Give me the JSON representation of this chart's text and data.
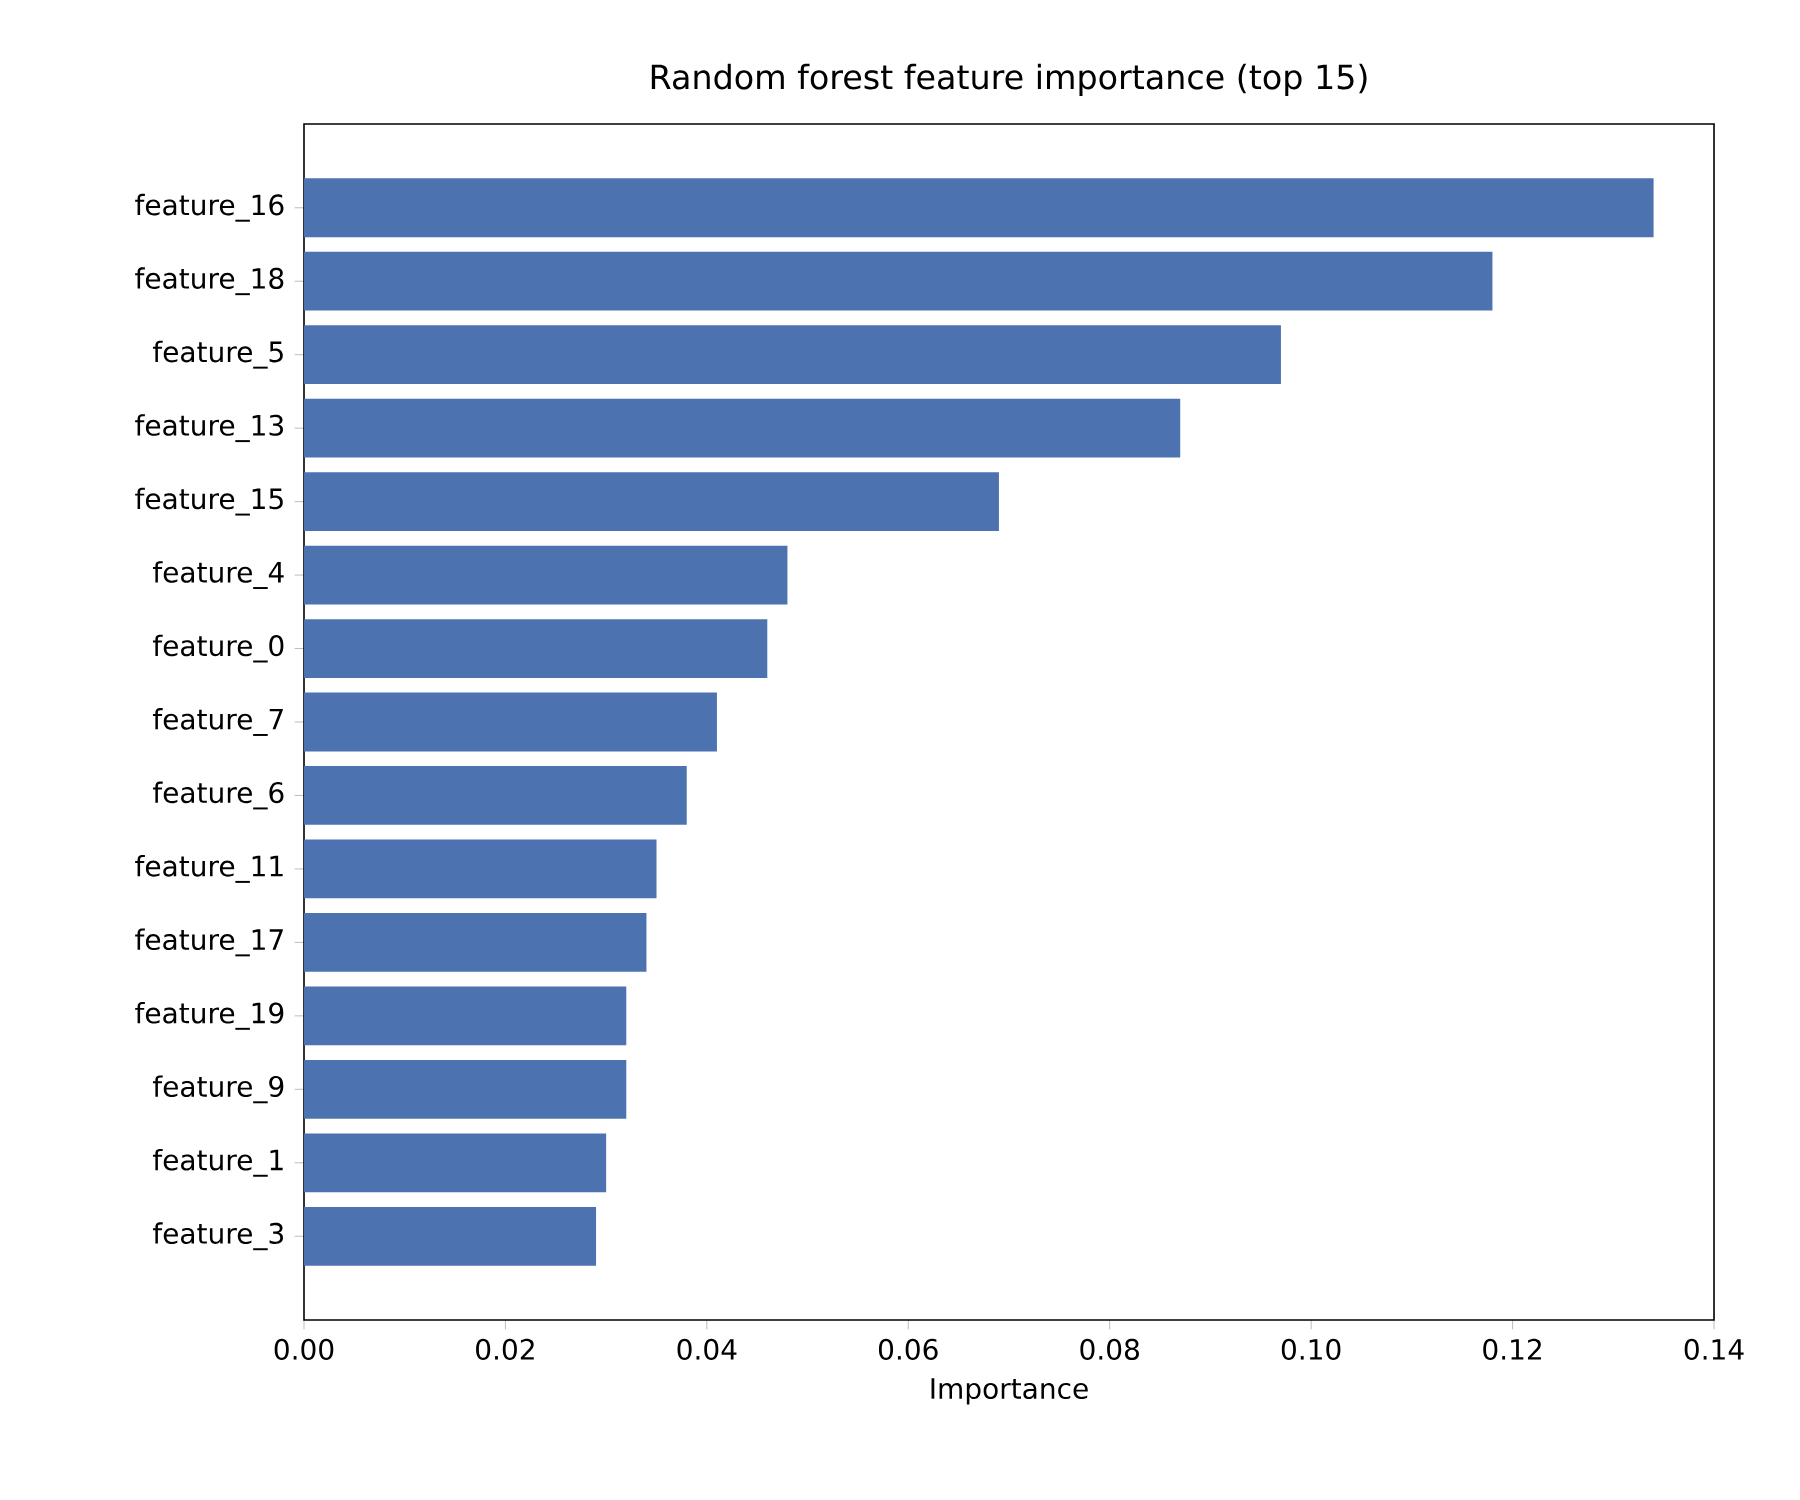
{
  "chart_data": {
    "type": "bar",
    "orientation": "horizontal",
    "title": "Random forest feature importance (top 15)",
    "xlabel": "Importance",
    "categories": [
      "feature_16",
      "feature_18",
      "feature_5",
      "feature_13",
      "feature_15",
      "feature_4",
      "feature_0",
      "feature_7",
      "feature_6",
      "feature_11",
      "feature_17",
      "feature_19",
      "feature_9",
      "feature_1",
      "feature_3"
    ],
    "values": [
      0.134,
      0.118,
      0.097,
      0.087,
      0.069,
      0.048,
      0.046,
      0.041,
      0.038,
      0.035,
      0.034,
      0.032,
      0.032,
      0.03,
      0.029
    ],
    "color": "#4c72b0",
    "xlim": [
      0,
      0.14
    ],
    "xticks": [
      {
        "value": 0,
        "label": "0.00"
      },
      {
        "value": 0.02,
        "label": "0.02"
      },
      {
        "value": 0.04,
        "label": "0.04"
      },
      {
        "value": 0.06,
        "label": "0.06"
      },
      {
        "value": 0.08,
        "label": "0.08"
      },
      {
        "value": 0.1,
        "label": "0.10"
      },
      {
        "value": 0.12,
        "label": "0.12"
      },
      {
        "value": 0.14,
        "label": "0.14"
      }
    ]
  }
}
